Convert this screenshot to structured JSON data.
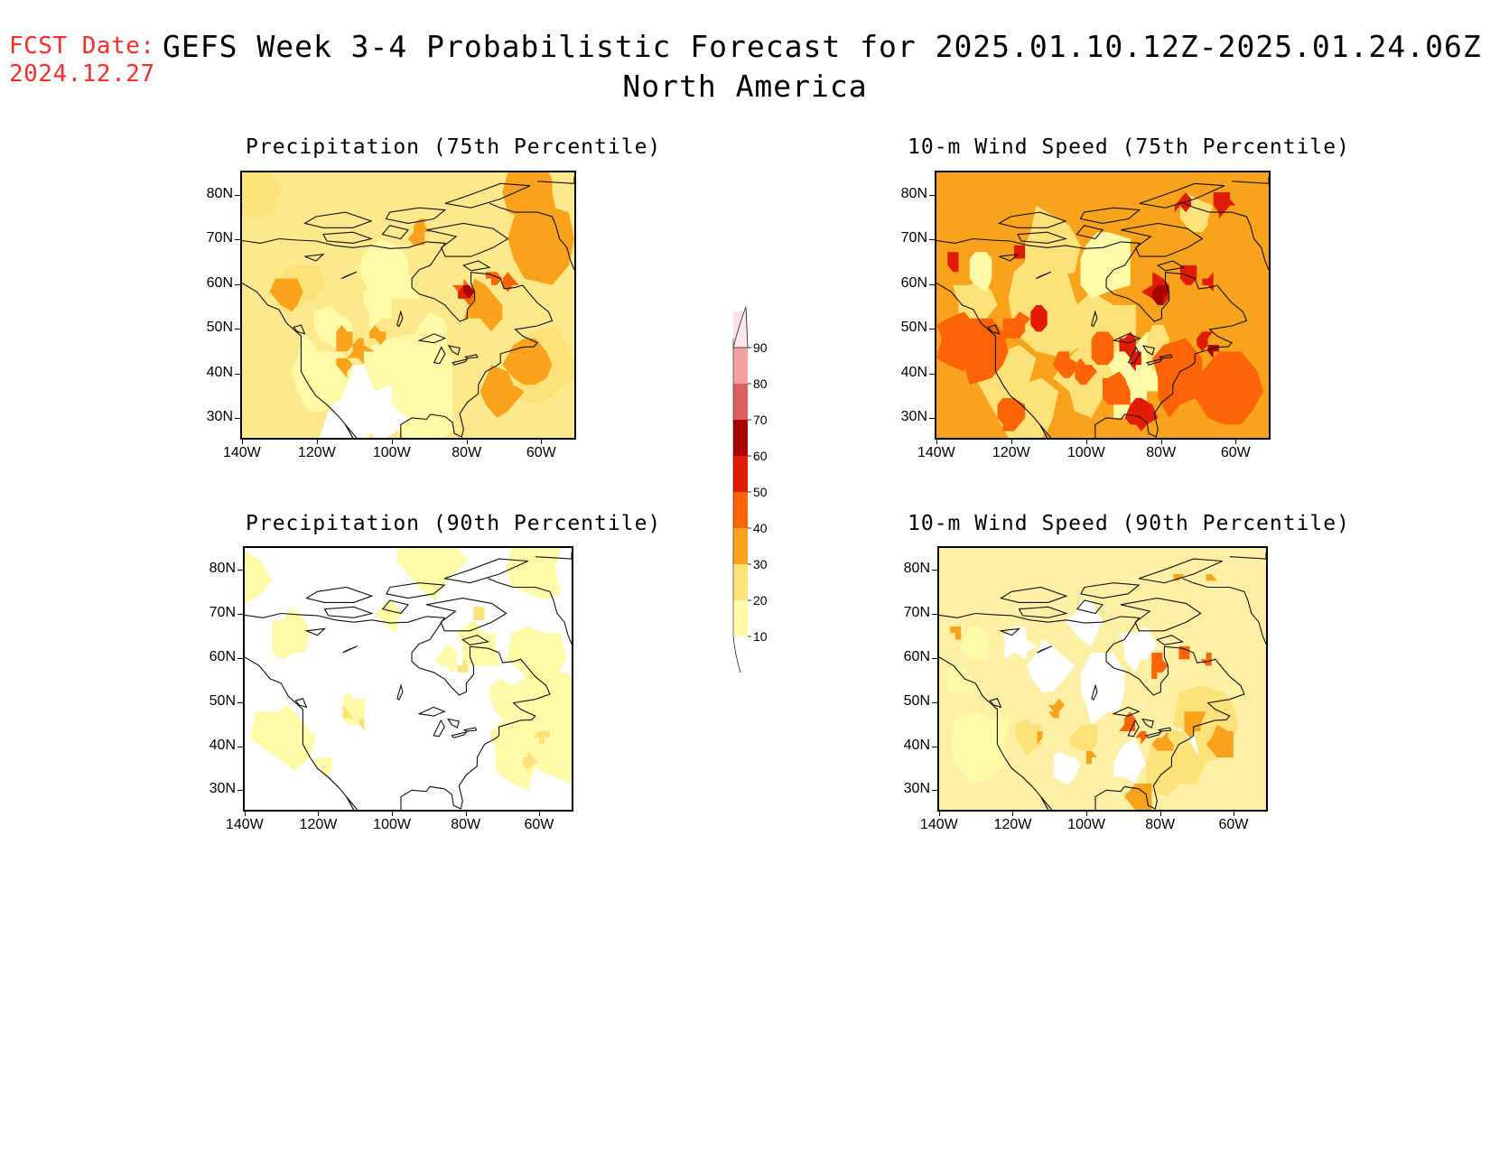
{
  "header": {
    "fcst_label": "FCST Date:",
    "fcst_date": "2024.12.27",
    "title_line1": "GEFS Week 3-4 Probabilistic Forecast for 2025.01.10.12Z-2025.01.24.06Z",
    "title_line2": "North America"
  },
  "axes": {
    "lat_labels": [
      "80N",
      "70N",
      "60N",
      "50N",
      "40N",
      "30N"
    ],
    "lon_labels": [
      "140W",
      "120W",
      "100W",
      "80W",
      "60W"
    ]
  },
  "panels": [
    {
      "id": "precip75",
      "title": "Precipitation (75th Percentile)",
      "base_color": "#fde98c",
      "level": "moderate"
    },
    {
      "id": "wind75",
      "title": "10-m Wind Speed (75th Percentile)",
      "base_color": "#f7a21b",
      "level": "high"
    },
    {
      "id": "precip90",
      "title": "Precipitation (90th Percentile)",
      "base_color": "#ffffff",
      "level": "low"
    },
    {
      "id": "wind90",
      "title": "10-m Wind Speed (90th Percentile)",
      "base_color": "#fdeea2",
      "level": "low-moderate"
    }
  ],
  "colorbar": {
    "levels": [
      "10",
      "20",
      "30",
      "40",
      "50",
      "60",
      "70",
      "80",
      "90"
    ],
    "colors": [
      "#fffaa8",
      "#fde27a",
      "#fba21d",
      "#fc6407",
      "#e21c04",
      "#a60503",
      "#dd6060",
      "#f5a0a0",
      "#fde0e6"
    ]
  }
}
